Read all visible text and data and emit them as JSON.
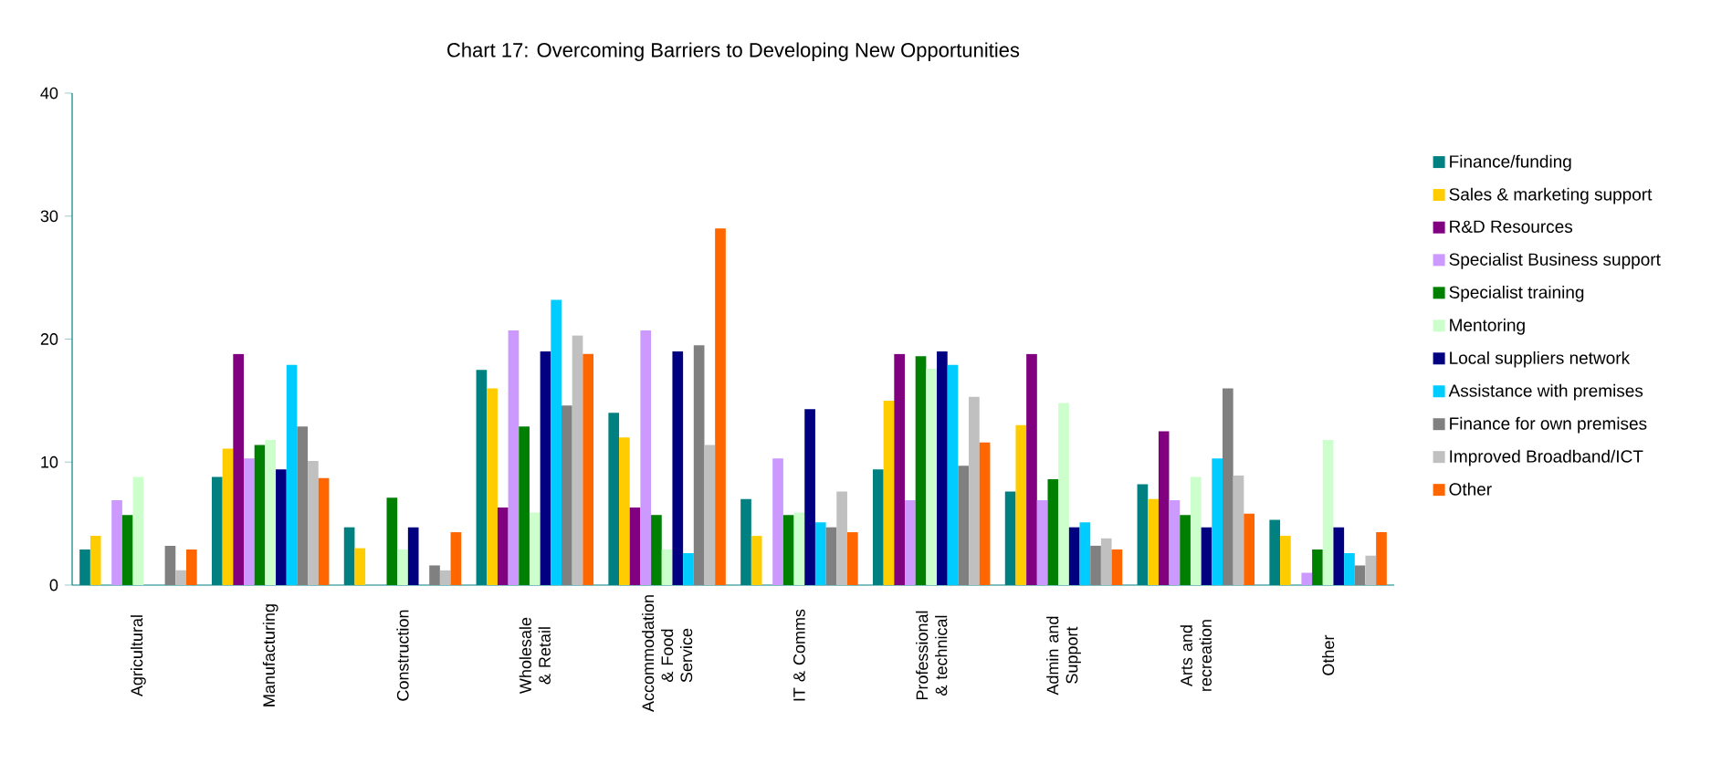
{
  "chart_data": {
    "type": "bar",
    "title": "Chart 17: Overcoming Barriers to Developing New Opportunities",
    "categories": [
      "Agricultural",
      "Manufacturing",
      "Construction",
      "Wholesale & Retail",
      "Accommodation & Food Service",
      "IT & Comms",
      "Professional & technical",
      "Admin and Support",
      "Arts and recreation",
      "Other"
    ],
    "series": [
      {
        "name": "Finance/funding",
        "color": "#008080",
        "values": [
          2.9,
          8.8,
          4.7,
          17.5,
          14.0,
          7.0,
          9.4,
          7.6,
          8.2,
          5.3
        ]
      },
      {
        "name": "Sales & marketing support",
        "color": "#ffcc00",
        "values": [
          4.0,
          11.1,
          3.0,
          16.0,
          12.0,
          4.0,
          15.0,
          13.0,
          7.0,
          4.0
        ]
      },
      {
        "name": "R&D Resources",
        "color": "#800080",
        "values": [
          null,
          18.8,
          null,
          6.3,
          6.3,
          null,
          18.8,
          18.8,
          12.5,
          null
        ]
      },
      {
        "name": "Specialist Business support",
        "color": "#cc99ff",
        "values": [
          6.9,
          10.3,
          null,
          20.7,
          20.7,
          10.3,
          6.9,
          6.9,
          6.9,
          1.0
        ]
      },
      {
        "name": "Specialist training",
        "color": "#008000",
        "values": [
          5.7,
          11.4,
          7.1,
          12.9,
          5.7,
          5.7,
          18.6,
          8.6,
          5.7,
          2.9
        ]
      },
      {
        "name": "Mentoring",
        "color": "#ccffcc",
        "values": [
          8.8,
          11.8,
          2.9,
          5.9,
          2.9,
          5.9,
          17.6,
          14.8,
          8.8,
          11.8
        ]
      },
      {
        "name": "Local suppliers network",
        "color": "#000080",
        "values": [
          null,
          9.4,
          4.7,
          19.0,
          19.0,
          14.3,
          19.0,
          4.7,
          4.7,
          4.7
        ]
      },
      {
        "name": "Assistance with premises",
        "color": "#00ccff",
        "values": [
          null,
          17.9,
          null,
          23.2,
          2.6,
          5.1,
          17.9,
          5.1,
          10.3,
          2.6
        ]
      },
      {
        "name": "Finance for own premises",
        "color": "#808080",
        "values": [
          3.2,
          12.9,
          1.6,
          14.6,
          19.5,
          4.7,
          9.7,
          3.2,
          16.0,
          1.6
        ]
      },
      {
        "name": "Improved Broadband/ICT",
        "color": "#c0c0c0",
        "values": [
          1.2,
          10.1,
          1.2,
          20.3,
          11.4,
          7.6,
          15.3,
          3.8,
          8.9,
          2.4
        ]
      },
      {
        "name": "Other",
        "color": "#ff6600",
        "values": [
          2.9,
          8.7,
          4.3,
          18.8,
          29.0,
          4.3,
          11.6,
          2.9,
          5.8,
          4.3
        ]
      }
    ],
    "ylim": [
      0,
      40
    ],
    "yticks": [
      0,
      10,
      20,
      30,
      40
    ],
    "grid": false,
    "legend": "right"
  }
}
